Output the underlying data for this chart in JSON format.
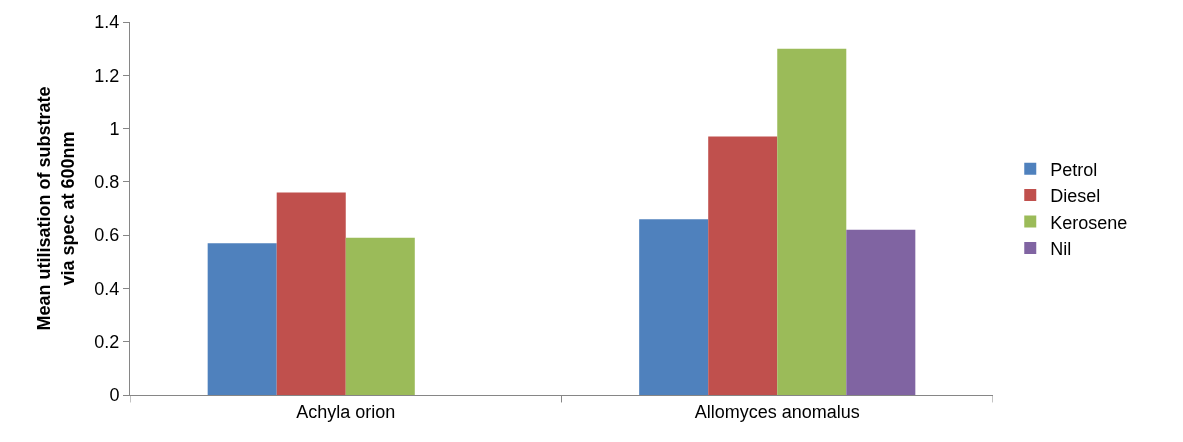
{
  "chart_data": {
    "type": "bar",
    "ylabel": "Mean utilisation of substrate via spec at 600nm",
    "categories": [
      "Achyla orion",
      "Allomyces anomalus"
    ],
    "series": [
      {
        "name": "Petrol",
        "color": "#4f81bd",
        "values": [
          0.57,
          0.66
        ]
      },
      {
        "name": "Diesel",
        "color": "#c0504d",
        "values": [
          0.76,
          0.97
        ]
      },
      {
        "name": "Kerosene",
        "color": "#9bbb59",
        "values": [
          0.59,
          1.3
        ]
      },
      {
        "name": "Nil",
        "color": "#8064a2",
        "values": [
          null,
          0.62
        ]
      }
    ],
    "ylim": [
      0,
      1.4
    ],
    "yticks": [
      0,
      0.2,
      0.4,
      0.6,
      0.8,
      1,
      1.2,
      1.4
    ],
    "grid": false,
    "legend": "right"
  }
}
